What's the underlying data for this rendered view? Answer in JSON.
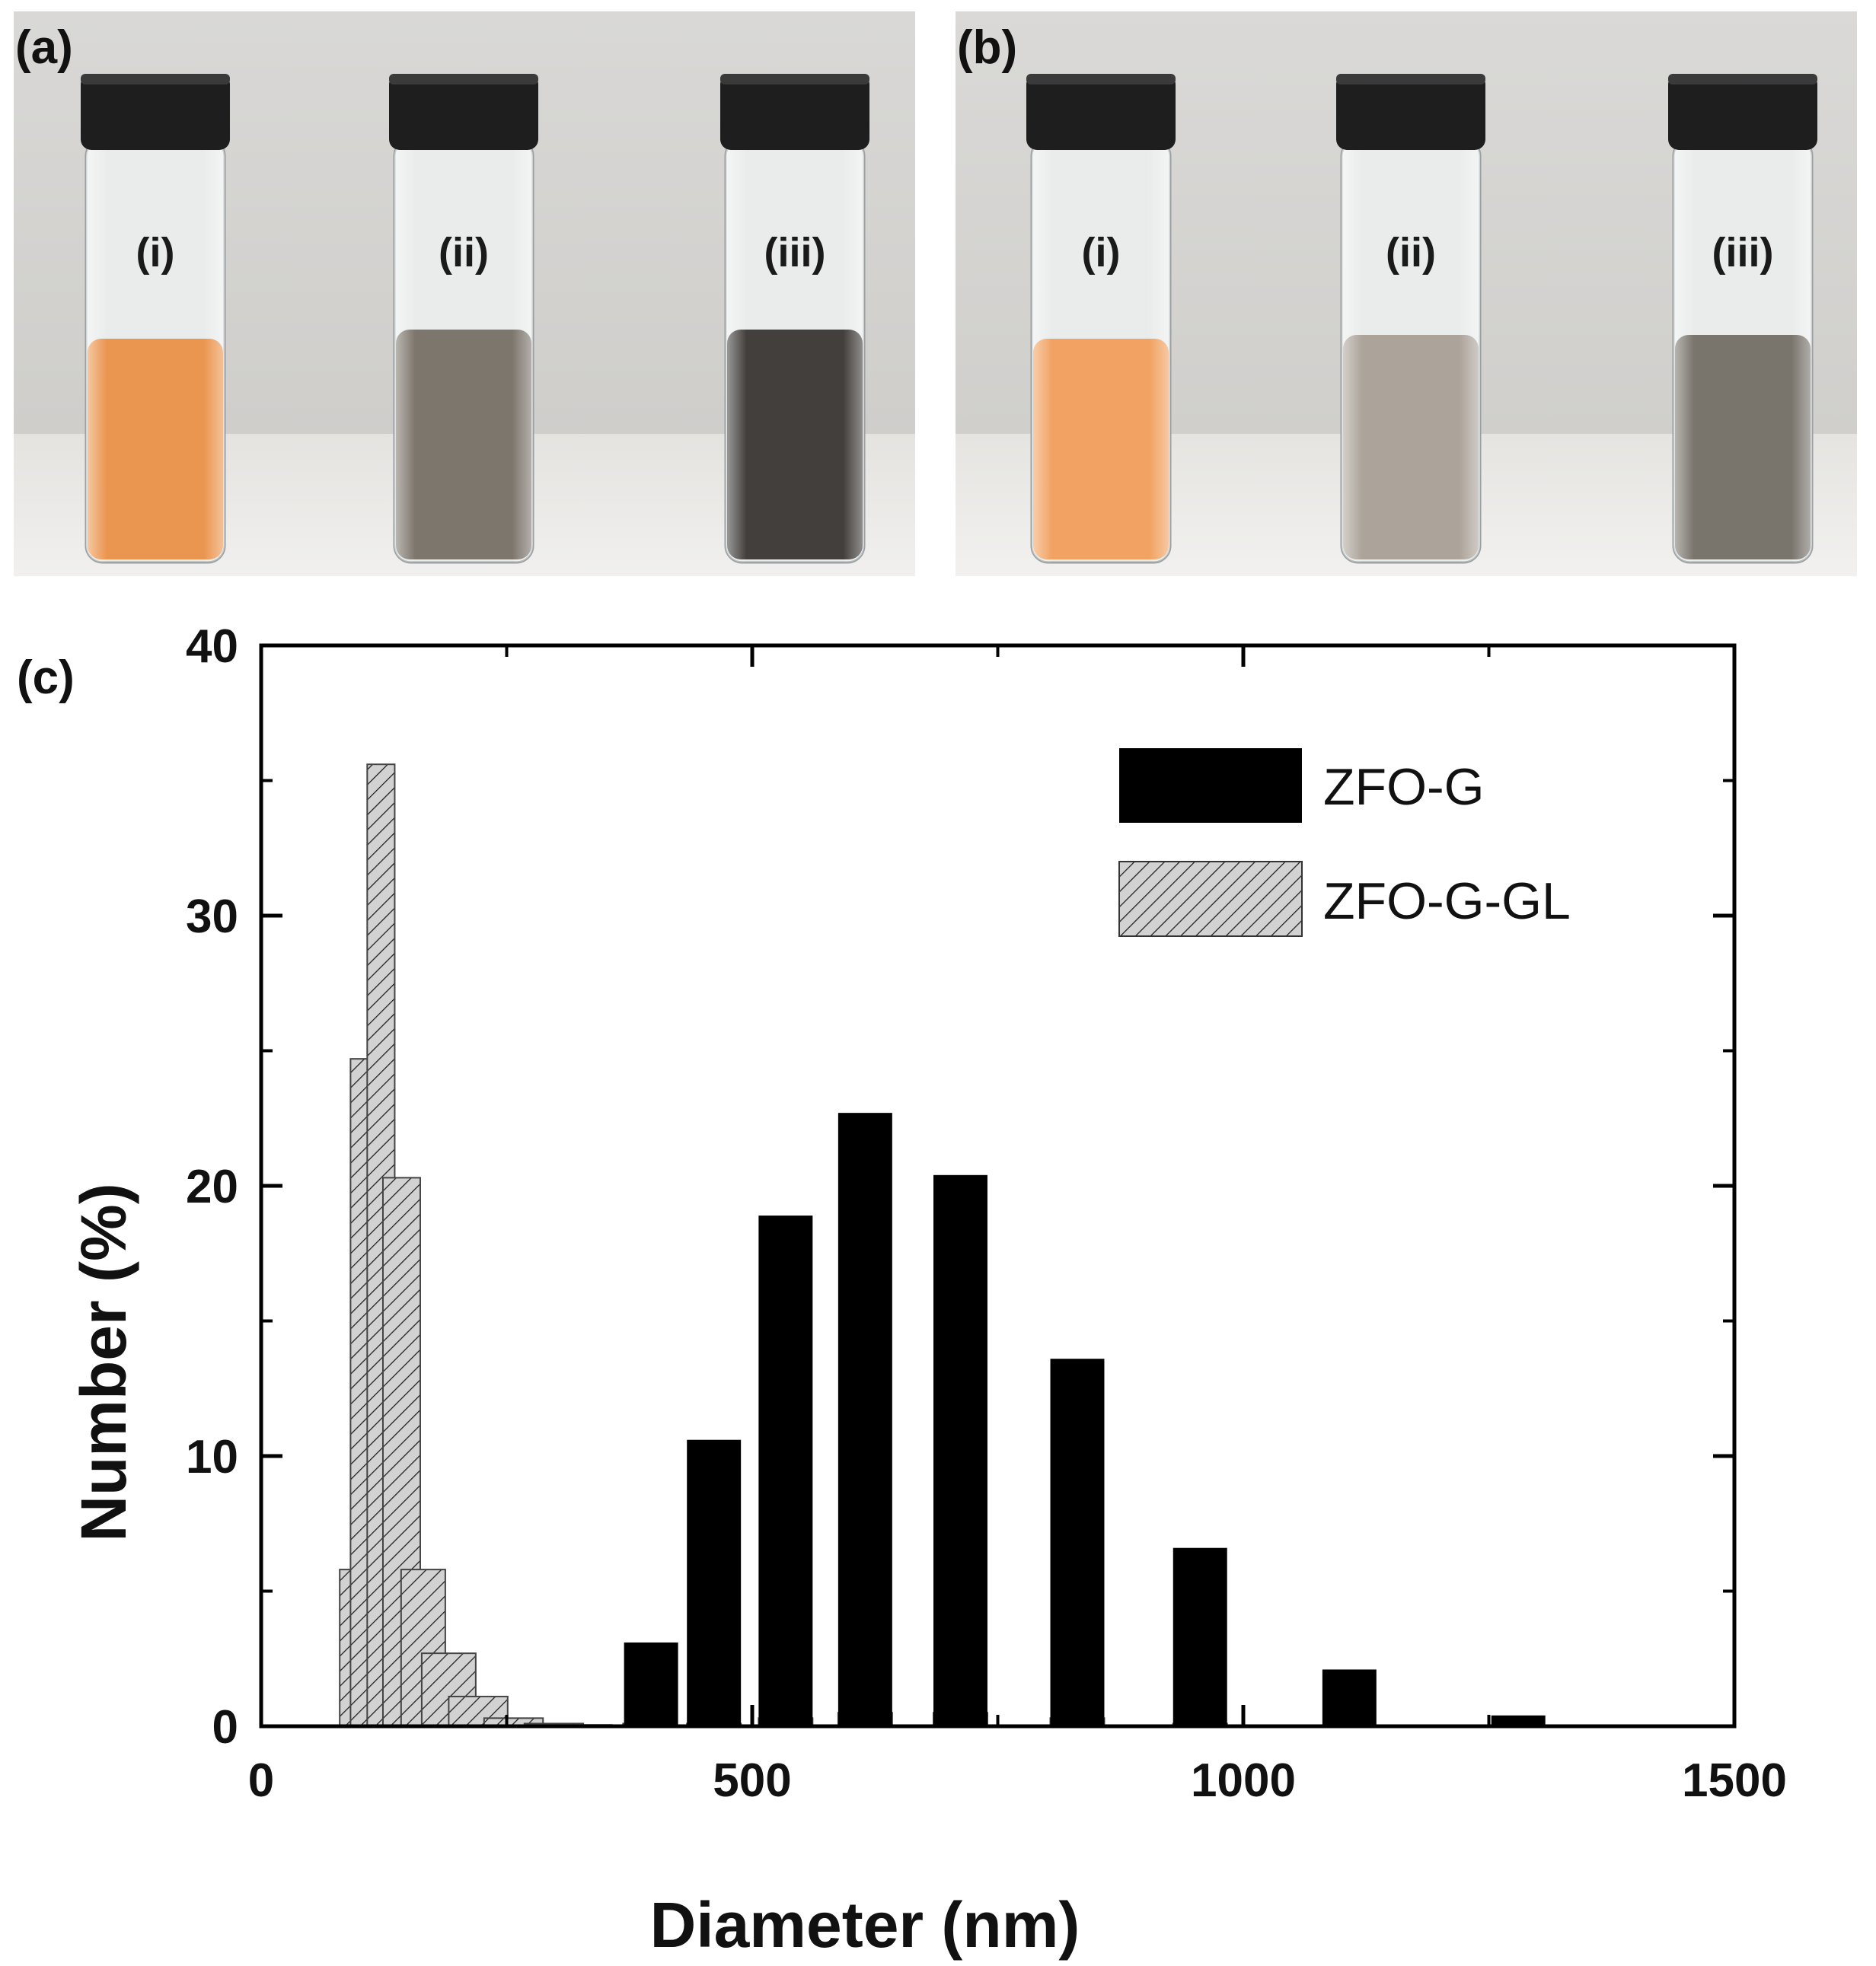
{
  "panels": {
    "a": {
      "label": "(a)",
      "vials": [
        "(i)",
        "(ii)",
        "(iii)"
      ]
    },
    "b": {
      "label": "(b)",
      "vials": [
        "(i)",
        "(ii)",
        "(iii)"
      ]
    },
    "c": {
      "label": "(c)"
    }
  },
  "colors": {
    "orange_liquid": "#e98a3c",
    "gray_liquid": "#6f675d",
    "dark_liquid": "#2e2a27",
    "bar_dark": "#000000",
    "bar_hatched": "#cfcfcf"
  },
  "chart_data": {
    "type": "bar",
    "title": "",
    "xlabel": "Diameter (nm)",
    "ylabel": "Number (%)",
    "xlim": [
      0,
      1500
    ],
    "ylim": [
      0,
      40
    ],
    "x_ticks": [
      0,
      500,
      1000,
      1500
    ],
    "y_ticks": [
      0,
      10,
      20,
      30,
      40
    ],
    "legend": {
      "position": "top-right",
      "entries": [
        "ZFO-G",
        "ZFO-G-GL"
      ]
    },
    "series": [
      {
        "name": "ZFO-G",
        "style": "solid-black",
        "bin_width": 55,
        "x": [
          397,
          461,
          534,
          615,
          712,
          831,
          956,
          1108,
          1280
        ],
        "values": [
          3.1,
          10.6,
          18.9,
          22.7,
          20.4,
          13.6,
          6.6,
          2.1,
          0.4
        ]
      },
      {
        "name": "ZFO-G-GL",
        "style": "hatched-gray",
        "x": [
          92,
          105,
          122,
          143,
          165,
          191,
          221,
          257,
          298,
          342,
          396,
          461,
          534,
          615,
          712,
          831,
          956
        ],
        "widths": [
          24,
          28,
          28,
          38,
          45,
          55,
          60,
          60,
          60,
          30,
          55,
          55,
          55,
          55,
          55,
          55,
          55
        ],
        "values": [
          5.8,
          24.7,
          35.6,
          20.3,
          5.8,
          2.7,
          1.1,
          0.3,
          0.1,
          0.05,
          0.1,
          0.1,
          0.3,
          0.5,
          0.5,
          0.3,
          0.1
        ]
      }
    ]
  }
}
